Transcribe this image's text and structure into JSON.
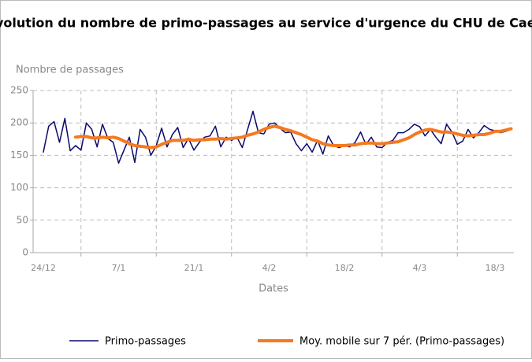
{
  "chart_data": {
    "type": "line",
    "title": "Evolution du nombre de primo-passages au service d'urgence du CHU de Caen",
    "y_label": "Nombre de passages",
    "x_label": "Dates",
    "categories": [
      "24/12",
      null,
      null,
      null,
      null,
      null,
      null,
      null,
      null,
      null,
      null,
      null,
      null,
      null,
      "7/1",
      null,
      null,
      null,
      null,
      null,
      null,
      null,
      null,
      null,
      null,
      null,
      null,
      null,
      "21/1",
      null,
      null,
      null,
      null,
      null,
      null,
      null,
      null,
      null,
      null,
      null,
      null,
      null,
      "4/2",
      null,
      null,
      null,
      null,
      null,
      null,
      null,
      null,
      null,
      null,
      null,
      null,
      null,
      "18/2",
      null,
      null,
      null,
      null,
      null,
      null,
      null,
      null,
      null,
      null,
      null,
      null,
      null,
      "4/3",
      null,
      null,
      null,
      null,
      null,
      null,
      null,
      null,
      null,
      null,
      null,
      null,
      null,
      "18/3",
      null,
      null,
      null
    ],
    "series": [
      {
        "name": "Primo-passages",
        "color": "#0a0a6e",
        "width": 1.5,
        "values": [
          155,
          195,
          202,
          170,
          207,
          157,
          165,
          158,
          200,
          190,
          163,
          198,
          176,
          170,
          138,
          158,
          178,
          139,
          190,
          178,
          150,
          165,
          192,
          163,
          182,
          193,
          162,
          176,
          158,
          170,
          178,
          180,
          195,
          163,
          178,
          173,
          178,
          162,
          190,
          218,
          185,
          183,
          198,
          200,
          192,
          185,
          186,
          168,
          157,
          168,
          155,
          173,
          152,
          180,
          165,
          162,
          165,
          163,
          170,
          186,
          167,
          178,
          163,
          162,
          170,
          173,
          185,
          185,
          190,
          198,
          194,
          180,
          190,
          178,
          168,
          198,
          186,
          167,
          172,
          190,
          177,
          185,
          196,
          190,
          188,
          185,
          187,
          190
        ]
      },
      {
        "name": "Moy. mobile sur 7 pér. (Primo-passages)",
        "color": "#f47920",
        "width": 4,
        "values": [
          null,
          null,
          null,
          null,
          null,
          null,
          178,
          179,
          179,
          177,
          177,
          178,
          177,
          178,
          176,
          172,
          168,
          165,
          164,
          163,
          162,
          163,
          167,
          170,
          173,
          173,
          173,
          175,
          173,
          174,
          174,
          175,
          175,
          176,
          175,
          176,
          177,
          178,
          181,
          183,
          186,
          190,
          193,
          195,
          193,
          190,
          188,
          185,
          182,
          178,
          174,
          172,
          168,
          166,
          165,
          165,
          165,
          166,
          166,
          168,
          169,
          169,
          168,
          168,
          169,
          170,
          171,
          174,
          177,
          182,
          186,
          189,
          190,
          188,
          186,
          186,
          185,
          183,
          181,
          180,
          181,
          182,
          182,
          184,
          187,
          187,
          189,
          191
        ]
      }
    ],
    "ylim": [
      0,
      250
    ],
    "yticks": [
      0,
      50,
      100,
      150,
      200,
      250
    ],
    "grid": true
  }
}
